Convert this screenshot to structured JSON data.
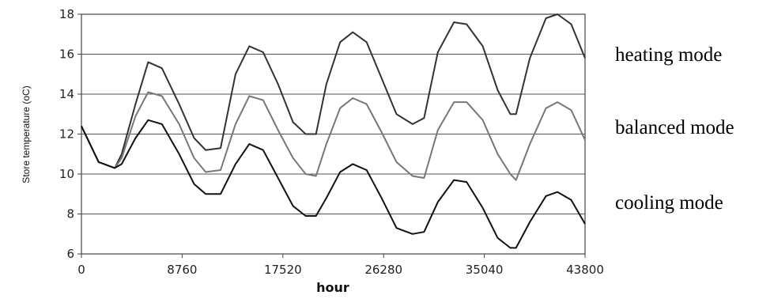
{
  "chart_data": {
    "type": "line",
    "title": "",
    "xlabel": "hour",
    "ylabel": "Store temperature (oC)",
    "xlim": [
      0,
      43800
    ],
    "ylim": [
      6,
      18
    ],
    "x_ticks": [
      "0",
      "8760",
      "17520",
      "26280",
      "35040",
      "43800"
    ],
    "y_ticks": [
      "6",
      "8",
      "10",
      "12",
      "14",
      "16",
      "18"
    ],
    "grid": "horizontal",
    "series": [
      {
        "name": "heating mode",
        "color": "#333333",
        "x": [
          0,
          1500,
          2900,
          3500,
          4700,
          5800,
          7000,
          8500,
          9800,
          10800,
          12100,
          13400,
          14600,
          15800,
          17100,
          18400,
          19500,
          20400,
          21300,
          22500,
          23600,
          24800,
          26100,
          27400,
          28800,
          29800,
          31000,
          32400,
          33500,
          34900,
          36200,
          37300,
          37800,
          39000,
          40400,
          41400,
          42600,
          43800
        ],
        "y": [
          12.4,
          10.6,
          10.3,
          11.0,
          13.5,
          15.6,
          15.3,
          13.5,
          11.8,
          11.2,
          11.3,
          15.0,
          16.4,
          16.1,
          14.5,
          12.6,
          12.0,
          12.0,
          14.5,
          16.6,
          17.1,
          16.6,
          14.8,
          13.0,
          12.5,
          12.8,
          16.1,
          17.6,
          17.5,
          16.4,
          14.2,
          13.0,
          13.0,
          15.8,
          17.8,
          18.0,
          17.5,
          15.8
        ]
      },
      {
        "name": "balanced mode",
        "color": "#777777",
        "x": [
          0,
          1500,
          2900,
          3500,
          4700,
          5800,
          7000,
          8500,
          9800,
          10800,
          12100,
          13400,
          14600,
          15800,
          17100,
          18400,
          19500,
          20400,
          21300,
          22500,
          23600,
          24800,
          26100,
          27400,
          28800,
          29800,
          31000,
          32400,
          33500,
          34900,
          36200,
          37300,
          37800,
          39000,
          40400,
          41400,
          42600,
          43800
        ],
        "y": [
          12.4,
          10.6,
          10.3,
          10.8,
          12.9,
          14.1,
          13.9,
          12.5,
          10.8,
          10.1,
          10.2,
          12.5,
          13.9,
          13.7,
          12.2,
          10.8,
          10.0,
          9.9,
          11.5,
          13.3,
          13.8,
          13.5,
          12.1,
          10.6,
          9.9,
          9.8,
          12.2,
          13.6,
          13.6,
          12.7,
          11.0,
          10.0,
          9.7,
          11.5,
          13.3,
          13.6,
          13.2,
          11.7
        ]
      },
      {
        "name": "cooling mode",
        "color": "#111111",
        "x": [
          0,
          1500,
          2900,
          3500,
          4700,
          5800,
          7000,
          8500,
          9800,
          10800,
          12100,
          13400,
          14600,
          15800,
          17100,
          18400,
          19500,
          20400,
          21300,
          22500,
          23600,
          24800,
          26100,
          27400,
          28800,
          29800,
          31000,
          32400,
          33500,
          34900,
          36200,
          37300,
          37800,
          39000,
          40400,
          41400,
          42600,
          43800
        ],
        "y": [
          12.4,
          10.6,
          10.3,
          10.5,
          11.8,
          12.7,
          12.5,
          11.0,
          9.5,
          9.0,
          9.0,
          10.5,
          11.5,
          11.2,
          9.8,
          8.4,
          7.9,
          7.9,
          8.8,
          10.1,
          10.5,
          10.2,
          8.8,
          7.3,
          7.0,
          7.1,
          8.6,
          9.7,
          9.6,
          8.3,
          6.8,
          6.3,
          6.3,
          7.6,
          8.9,
          9.1,
          8.7,
          7.5
        ]
      }
    ]
  }
}
